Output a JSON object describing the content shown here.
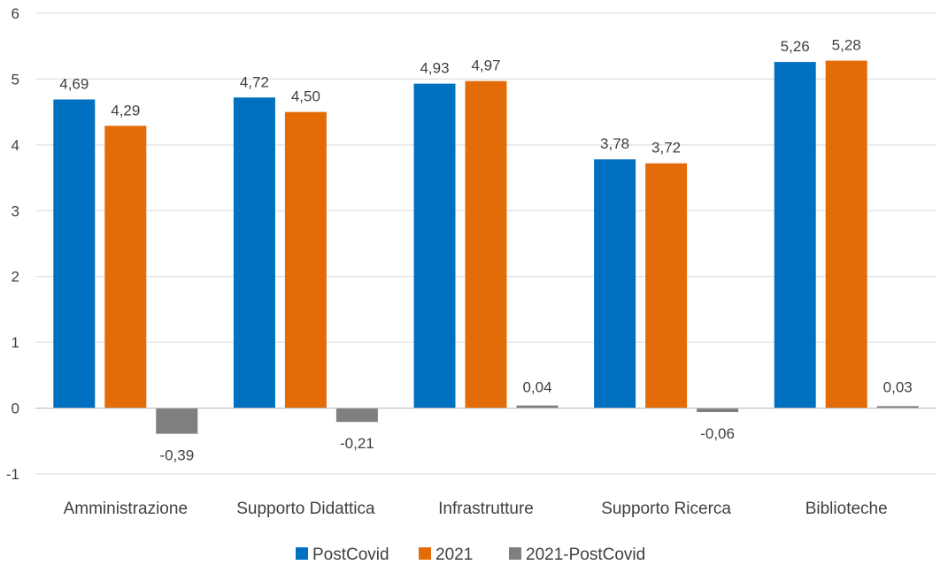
{
  "chart_data": {
    "type": "bar",
    "title": "",
    "xlabel": "",
    "ylabel": "",
    "ylim": [
      -1,
      6
    ],
    "yticks": [
      "-1",
      "0",
      "1",
      "2",
      "3",
      "4",
      "5",
      "6"
    ],
    "grid": true,
    "legend_position": "bottom",
    "categories": [
      "Amministrazione",
      "Supporto Didattica",
      "Infrastrutture",
      "Supporto Ricerca",
      "Biblioteche"
    ],
    "series": [
      {
        "name": "PostCovid",
        "color": "#0070C0",
        "values": [
          4.69,
          4.72,
          4.93,
          3.78,
          5.26
        ],
        "labels": [
          "4,69",
          "4,72",
          "4,93",
          "3,78",
          "5,26"
        ]
      },
      {
        "name": "2021",
        "color": "#E36C09",
        "values": [
          4.29,
          4.5,
          4.97,
          3.72,
          5.28
        ],
        "labels": [
          "4,29",
          "4,50",
          "4,97",
          "3,72",
          "5,28"
        ]
      },
      {
        "name": "2021-PostCovid",
        "color": "#7F7F7F",
        "values": [
          -0.39,
          -0.21,
          0.04,
          -0.06,
          0.03
        ],
        "labels": [
          "-0,39",
          "-0,21",
          "0,04",
          "-0,06",
          "0,03"
        ]
      }
    ]
  }
}
